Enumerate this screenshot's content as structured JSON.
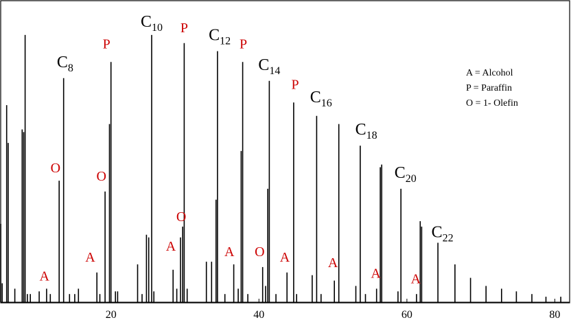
{
  "chart_data": {
    "type": "line",
    "title": "",
    "xlabel": "",
    "ylabel": "",
    "xlim": [
      5,
      82
    ],
    "ylim": [
      0,
      1
    ],
    "x_ticks": [
      {
        "value": 20,
        "label": "20"
      },
      {
        "value": 40,
        "label": "40"
      },
      {
        "value": 60,
        "label": "60"
      },
      {
        "value": 80,
        "label": "80"
      }
    ],
    "grid": false,
    "legend_position": "top-right",
    "legend": [
      {
        "text": "A = Alcohol"
      },
      {
        "text": "P = Paraffin"
      },
      {
        "text": "O = 1- Olefin"
      }
    ],
    "colors": {
      "trace": "#000000",
      "annotation_red": "#cc0000",
      "annotation_black": "#000000"
    },
    "peaks": [
      {
        "x": 5.1,
        "y": 0.29
      },
      {
        "x": 5.3,
        "y": 0.07
      },
      {
        "x": 5.9,
        "y": 0.73
      },
      {
        "x": 6.1,
        "y": 0.59
      },
      {
        "x": 7.0,
        "y": 0.05
      },
      {
        "x": 8.0,
        "y": 0.64
      },
      {
        "x": 8.2,
        "y": 0.63
      },
      {
        "x": 8.4,
        "y": 0.99
      },
      {
        "x": 8.7,
        "y": 0.03
      },
      {
        "x": 9.1,
        "y": 0.03
      },
      {
        "x": 10.3,
        "y": 0.04
      },
      {
        "x": 11.3,
        "y": 0.05
      },
      {
        "x": 11.8,
        "y": 0.03
      },
      {
        "x": 13.0,
        "y": 0.45
      },
      {
        "x": 13.6,
        "y": 0.83
      },
      {
        "x": 14.4,
        "y": 0.03
      },
      {
        "x": 15.1,
        "y": 0.03
      },
      {
        "x": 15.6,
        "y": 0.05
      },
      {
        "x": 18.1,
        "y": 0.11
      },
      {
        "x": 18.5,
        "y": 0.03
      },
      {
        "x": 19.2,
        "y": 0.41
      },
      {
        "x": 19.8,
        "y": 0.66
      },
      {
        "x": 20.0,
        "y": 0.89
      },
      {
        "x": 20.6,
        "y": 0.04
      },
      {
        "x": 20.9,
        "y": 0.04
      },
      {
        "x": 23.6,
        "y": 0.14
      },
      {
        "x": 24.2,
        "y": 0.03
      },
      {
        "x": 24.8,
        "y": 0.25
      },
      {
        "x": 25.1,
        "y": 0.24
      },
      {
        "x": 25.5,
        "y": 0.99
      },
      {
        "x": 25.8,
        "y": 0.04
      },
      {
        "x": 28.4,
        "y": 0.12
      },
      {
        "x": 28.9,
        "y": 0.05
      },
      {
        "x": 29.4,
        "y": 0.24
      },
      {
        "x": 29.7,
        "y": 0.28
      },
      {
        "x": 29.9,
        "y": 0.96
      },
      {
        "x": 30.3,
        "y": 0.05
      },
      {
        "x": 32.9,
        "y": 0.15
      },
      {
        "x": 33.6,
        "y": 0.15
      },
      {
        "x": 34.2,
        "y": 0.38
      },
      {
        "x": 34.4,
        "y": 0.93
      },
      {
        "x": 35.4,
        "y": 0.03
      },
      {
        "x": 36.6,
        "y": 0.14
      },
      {
        "x": 37.2,
        "y": 0.05
      },
      {
        "x": 37.6,
        "y": 0.56
      },
      {
        "x": 37.8,
        "y": 0.89
      },
      {
        "x": 38.5,
        "y": 0.03
      },
      {
        "x": 40.5,
        "y": 0.13
      },
      {
        "x": 40.9,
        "y": 0.06
      },
      {
        "x": 41.2,
        "y": 0.42
      },
      {
        "x": 41.4,
        "y": 0.82
      },
      {
        "x": 42.3,
        "y": 0.03
      },
      {
        "x": 43.8,
        "y": 0.11
      },
      {
        "x": 44.7,
        "y": 0.74
      },
      {
        "x": 45.1,
        "y": 0.03
      },
      {
        "x": 47.2,
        "y": 0.1
      },
      {
        "x": 47.8,
        "y": 0.69
      },
      {
        "x": 48.4,
        "y": 0.03
      },
      {
        "x": 50.2,
        "y": 0.08
      },
      {
        "x": 50.8,
        "y": 0.66
      },
      {
        "x": 53.1,
        "y": 0.06
      },
      {
        "x": 53.7,
        "y": 0.58
      },
      {
        "x": 54.4,
        "y": 0.03
      },
      {
        "x": 55.9,
        "y": 0.05
      },
      {
        "x": 56.4,
        "y": 0.5
      },
      {
        "x": 56.6,
        "y": 0.51
      },
      {
        "x": 58.8,
        "y": 0.04
      },
      {
        "x": 59.2,
        "y": 0.42
      },
      {
        "x": 61.3,
        "y": 0.03
      },
      {
        "x": 61.8,
        "y": 0.3
      },
      {
        "x": 62.0,
        "y": 0.28
      },
      {
        "x": 64.2,
        "y": 0.22
      },
      {
        "x": 66.5,
        "y": 0.14
      },
      {
        "x": 68.6,
        "y": 0.09
      },
      {
        "x": 70.7,
        "y": 0.06
      },
      {
        "x": 72.8,
        "y": 0.05
      },
      {
        "x": 74.8,
        "y": 0.04
      },
      {
        "x": 76.9,
        "y": 0.03
      },
      {
        "x": 78.8,
        "y": 0.02
      },
      {
        "x": 80.8,
        "y": 0.02
      }
    ],
    "annotations": [
      {
        "x": 12.5,
        "y": 0.46,
        "text": "O",
        "sub": "",
        "color": "red"
      },
      {
        "x": 11.0,
        "y": 0.06,
        "text": "A",
        "sub": "",
        "color": "red"
      },
      {
        "x": 13.8,
        "y": 0.85,
        "text": "C",
        "sub": "8",
        "color": "black"
      },
      {
        "x": 19.4,
        "y": 0.92,
        "text": "P",
        "sub": "",
        "color": "red"
      },
      {
        "x": 18.7,
        "y": 0.43,
        "text": "O",
        "sub": "",
        "color": "red"
      },
      {
        "x": 17.2,
        "y": 0.13,
        "text": "A",
        "sub": "",
        "color": "red"
      },
      {
        "x": 25.5,
        "y": 1.0,
        "text": "C",
        "sub": "10",
        "color": "black"
      },
      {
        "x": 29.9,
        "y": 0.98,
        "text": "P",
        "sub": "",
        "color": "red"
      },
      {
        "x": 29.5,
        "y": 0.28,
        "text": "O",
        "sub": "",
        "color": "red"
      },
      {
        "x": 28.1,
        "y": 0.17,
        "text": "A",
        "sub": "",
        "color": "red"
      },
      {
        "x": 34.7,
        "y": 0.95,
        "text": "C",
        "sub": "12",
        "color": "black"
      },
      {
        "x": 37.9,
        "y": 0.92,
        "text": "P",
        "sub": "",
        "color": "red"
      },
      {
        "x": 36.0,
        "y": 0.15,
        "text": "A",
        "sub": "",
        "color": "red"
      },
      {
        "x": 40.1,
        "y": 0.15,
        "text": "O",
        "sub": "",
        "color": "red"
      },
      {
        "x": 41.4,
        "y": 0.84,
        "text": "C",
        "sub": "14",
        "color": "black"
      },
      {
        "x": 44.9,
        "y": 0.77,
        "text": "P",
        "sub": "",
        "color": "red"
      },
      {
        "x": 43.5,
        "y": 0.13,
        "text": "A",
        "sub": "",
        "color": "red"
      },
      {
        "x": 48.4,
        "y": 0.72,
        "text": "C",
        "sub": "16",
        "color": "black"
      },
      {
        "x": 50.0,
        "y": 0.11,
        "text": "A",
        "sub": "",
        "color": "red"
      },
      {
        "x": 54.5,
        "y": 0.6,
        "text": "C",
        "sub": "18",
        "color": "black"
      },
      {
        "x": 55.8,
        "y": 0.07,
        "text": "A",
        "sub": "",
        "color": "red"
      },
      {
        "x": 59.8,
        "y": 0.44,
        "text": "C",
        "sub": "20",
        "color": "black"
      },
      {
        "x": 61.2,
        "y": 0.05,
        "text": "A",
        "sub": "",
        "color": "red"
      },
      {
        "x": 64.8,
        "y": 0.22,
        "text": "C",
        "sub": "22",
        "color": "black"
      }
    ]
  }
}
